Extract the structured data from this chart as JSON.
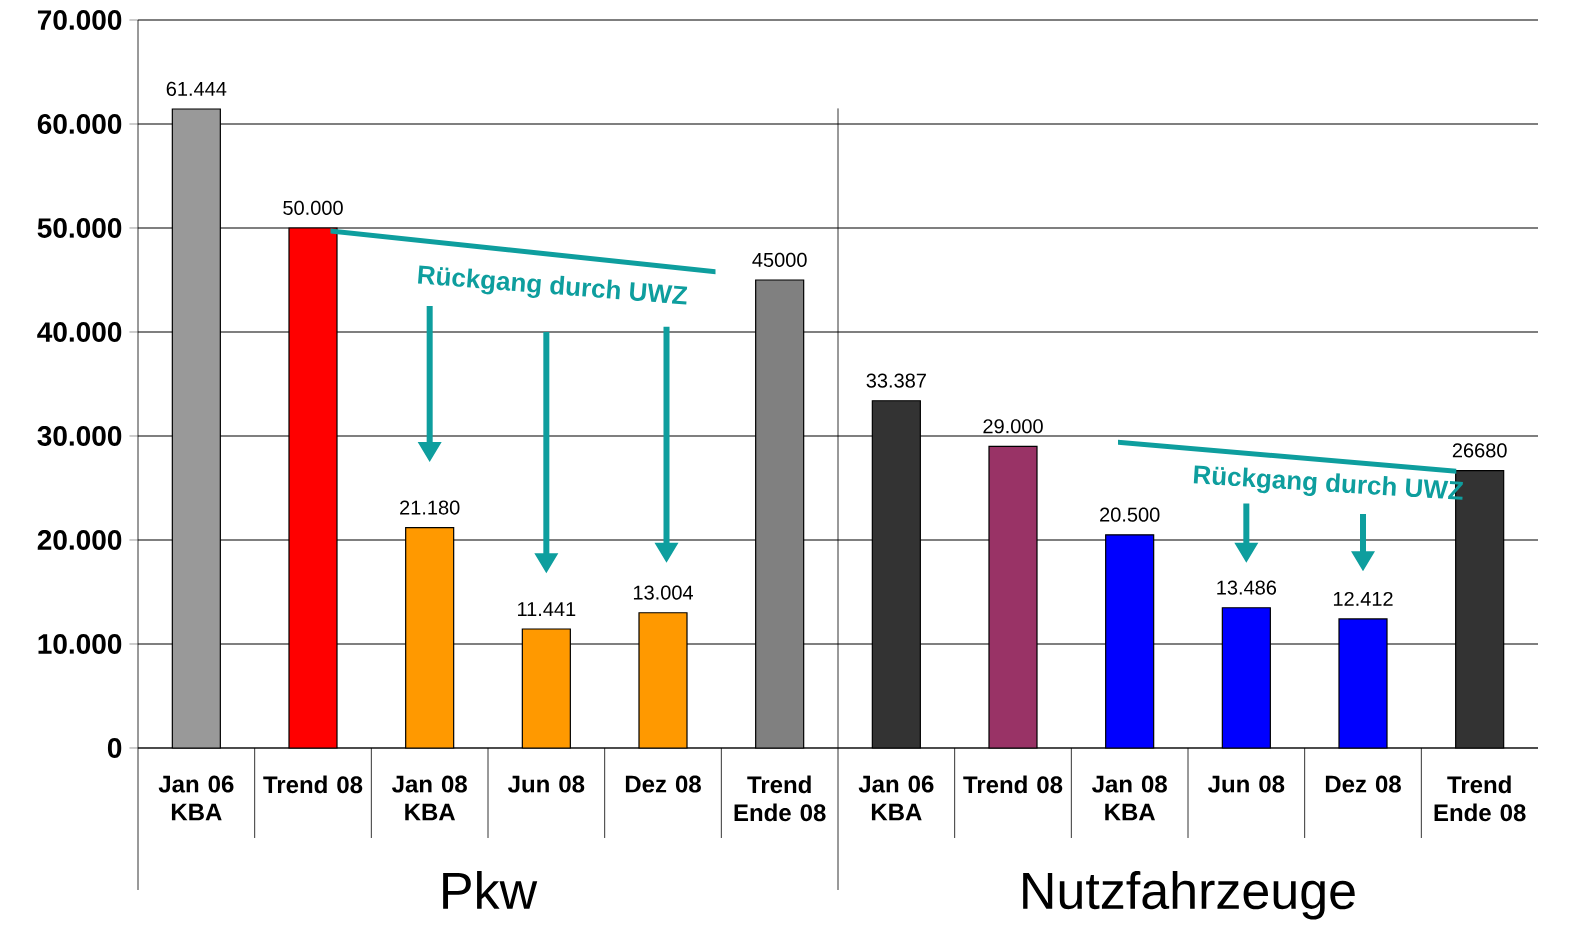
{
  "chart_data": {
    "type": "bar",
    "categories": [
      "Jan 06 KBA",
      "Trend 08",
      "Jan 08 KBA",
      "Jun 08",
      "Dez 08",
      "Trend Ende 08",
      "Jan 06 KBA",
      "Trend 08",
      "Jan 08 KBA",
      "Jun 08",
      "Dez 08",
      "Trend Ende 08"
    ],
    "values": [
      61444,
      50000,
      21180,
      11441,
      13004,
      45000,
      33387,
      29000,
      20500,
      13486,
      12412,
      26680
    ],
    "value_labels": [
      "61.444",
      "50.000",
      "21.180",
      "11.441",
      "13.004",
      "45000",
      "33.387",
      "29.000",
      "20.500",
      "13.486",
      "12.412",
      "26680"
    ],
    "colors": [
      "#999999",
      "#ff0000",
      "#ff9900",
      "#ff9900",
      "#ff9900",
      "#808080",
      "#333333",
      "#993366",
      "#0000ff",
      "#0000ff",
      "#0000ff",
      "#333333"
    ],
    "ylim": [
      0,
      70000
    ],
    "yticks": [
      {
        "value": 0,
        "label": "0"
      },
      {
        "value": 10000,
        "label": "10.000"
      },
      {
        "value": 20000,
        "label": "20.000"
      },
      {
        "value": 30000,
        "label": "30.000"
      },
      {
        "value": 40000,
        "label": "40.000"
      },
      {
        "value": 50000,
        "label": "50.000"
      },
      {
        "value": 60000,
        "label": "60.000"
      },
      {
        "value": 70000,
        "label": "70.000"
      }
    ],
    "grid": "y",
    "annotations": [
      "Rückgang durch UWZ",
      "Rückgang durch UWZ",
      "Pkw",
      "Nutzfahrzeuge"
    ]
  }
}
